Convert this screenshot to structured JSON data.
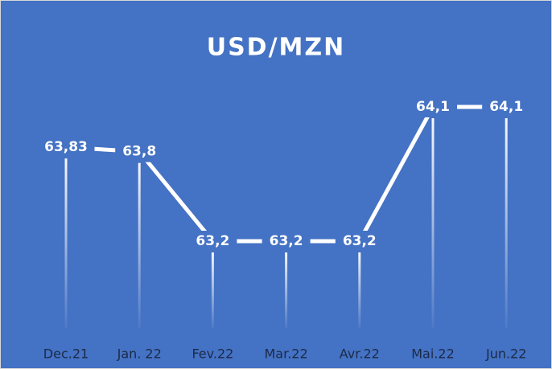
{
  "chart_data": {
    "type": "line",
    "title": "USD/MZN",
    "categories": [
      "Dec.21",
      "Jan. 22",
      "Fev.22",
      "Mar.22",
      "Avr.22",
      "Mai.22",
      "Jun.22"
    ],
    "values": [
      63.83,
      63.8,
      63.2,
      63.2,
      63.2,
      64.1,
      64.1
    ],
    "value_labels": [
      "63,83",
      "63,8",
      "63,2",
      "63,2",
      "63,2",
      "64,1",
      "64,1"
    ],
    "color": "#ffffff",
    "background": "#4472c4"
  }
}
